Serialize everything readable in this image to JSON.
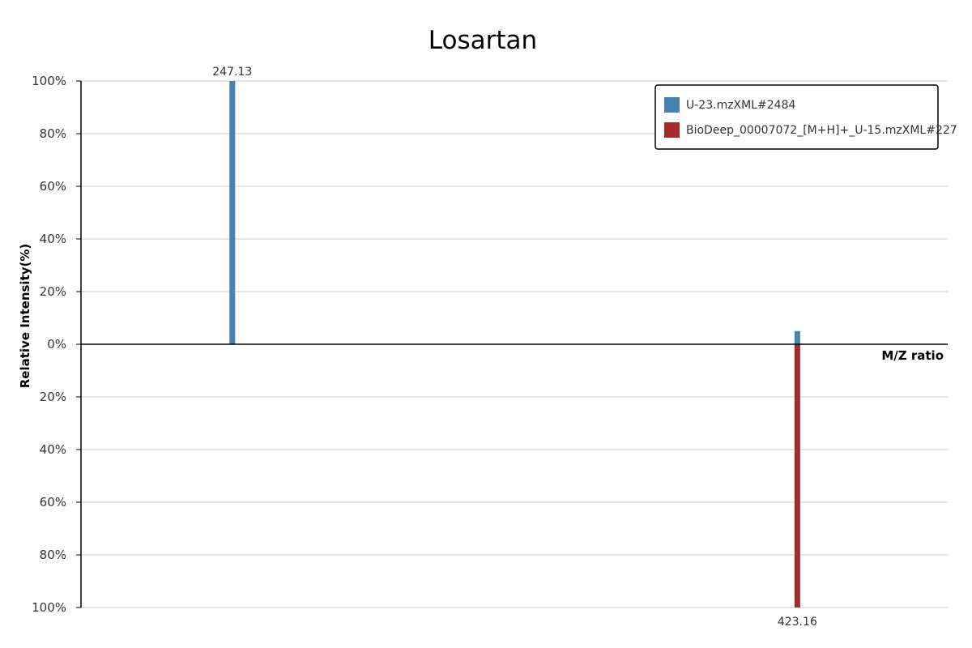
{
  "chart_data": {
    "type": "bar",
    "title": "Losartan",
    "xlabel": "M/Z ratio",
    "ylabel": "Relative Intensity(%)",
    "ylim": [
      -100,
      100
    ],
    "y_ticks": [
      "100%",
      "80%",
      "60%",
      "40%",
      "20%",
      "0%",
      "20%",
      "40%",
      "60%",
      "80%",
      "100%"
    ],
    "xlim": [
      200,
      470
    ],
    "grid": true,
    "legend_position": "top-right",
    "series": [
      {
        "name": "U-23.mzXML#2484",
        "color": "#4682b4",
        "direction": "up",
        "peaks": [
          {
            "mz": 247.13,
            "intensity": 100,
            "label": "247.13"
          },
          {
            "mz": 423.16,
            "intensity": 5,
            "label": ""
          }
        ]
      },
      {
        "name": "BioDeep_00007072_[M+H]+_U-15.mzXML#227",
        "color": "#a52a2a",
        "direction": "down",
        "peaks": [
          {
            "mz": 423.16,
            "intensity": 100,
            "label": "423.16"
          }
        ]
      }
    ]
  }
}
